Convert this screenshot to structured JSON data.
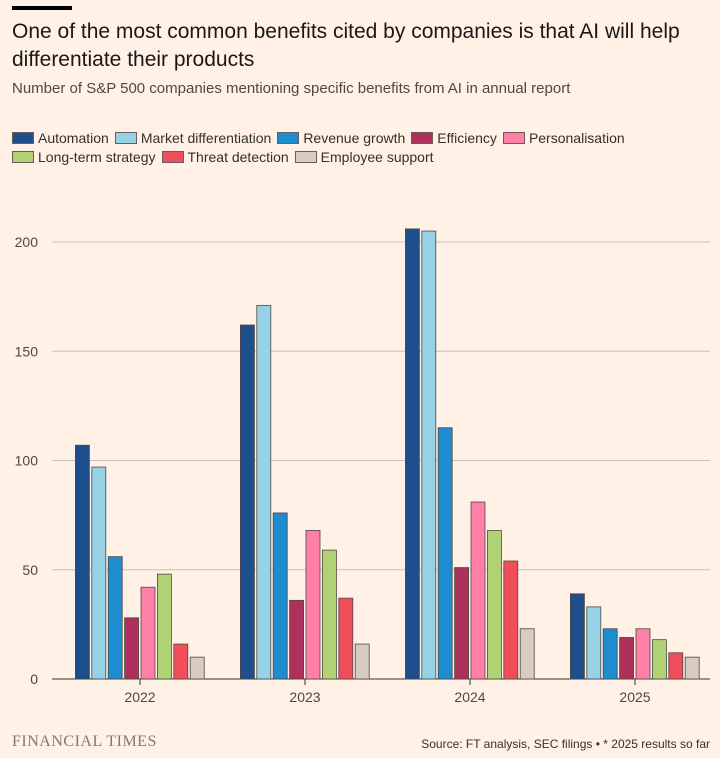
{
  "title": "One of the most common benefits cited by companies is that AI will help differentiate their products",
  "subtitle": "Number of S&P 500 companies mentioning specific benefits from AI in annual report",
  "footer": {
    "logo": "FINANCIAL TIMES",
    "source": "Source: FT analysis, SEC filings • * 2025 results so far"
  },
  "chart_data": {
    "type": "bar",
    "categories": [
      "2022",
      "2023",
      "2024",
      "2025"
    ],
    "ylim": [
      0,
      220
    ],
    "yticks": [
      0,
      50,
      100,
      150,
      200
    ],
    "grid": true,
    "legend": "top-left",
    "series": [
      {
        "name": "Automation",
        "color": "#1f4e8c",
        "values": [
          107,
          162,
          206,
          39
        ]
      },
      {
        "name": "Market differentiation",
        "color": "#96d1e6",
        "values": [
          97,
          171,
          205,
          33
        ]
      },
      {
        "name": "Revenue growth",
        "color": "#1e8ccf",
        "values": [
          56,
          76,
          115,
          23
        ]
      },
      {
        "name": "Efficiency",
        "color": "#b0305c",
        "values": [
          28,
          36,
          51,
          19
        ]
      },
      {
        "name": "Personalisation",
        "color": "#ff7fa6",
        "values": [
          42,
          68,
          81,
          23
        ]
      },
      {
        "name": "Long-term strategy",
        "color": "#b1d274",
        "values": [
          48,
          59,
          68,
          18
        ]
      },
      {
        "name": "Threat detection",
        "color": "#f04e5a",
        "values": [
          16,
          37,
          54,
          12
        ]
      },
      {
        "name": "Employee support",
        "color": "#d7cbc2",
        "values": [
          10,
          16,
          23,
          10
        ]
      }
    ]
  }
}
